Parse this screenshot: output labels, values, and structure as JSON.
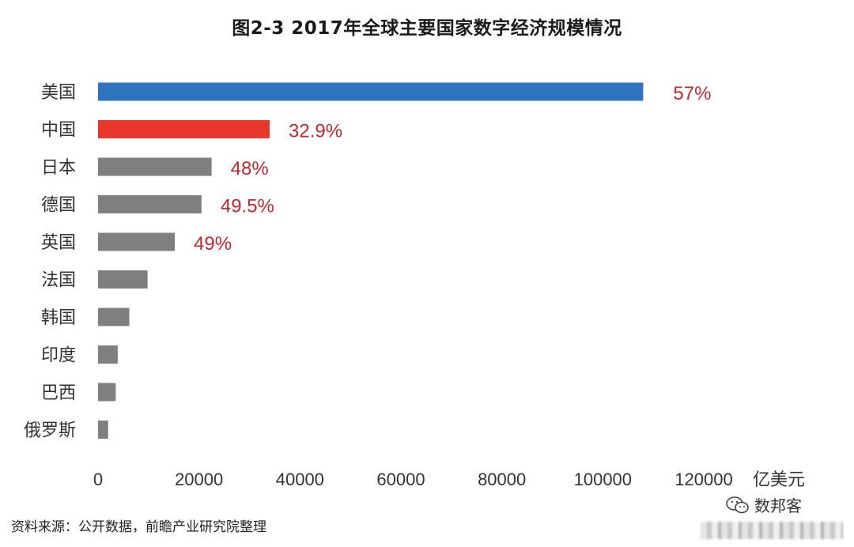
{
  "title": "图2-3 2017年全球主要国家数字经济规模情况",
  "source_text": "资料来源：公开数据，前瞻产业研究院整理",
  "wechat_label": "数邦客",
  "colors": {
    "usa": "#2f74c0",
    "china": "#e8362c",
    "others": "#7f7f7f",
    "share_label": "#c0282d",
    "axis_text": "#333333"
  },
  "chart_data": {
    "type": "bar",
    "orientation": "horizontal",
    "categories": [
      "美国",
      "中国",
      "日本",
      "德国",
      "英国",
      "法国",
      "韩国",
      "印度",
      "巴西",
      "俄罗斯"
    ],
    "values": [
      108000,
      34000,
      22500,
      20500,
      15200,
      9800,
      6200,
      3900,
      3500,
      2000
    ],
    "annotations": [
      "57%",
      "32.9%",
      "48%",
      "49.5%",
      "49%",
      null,
      null,
      null,
      null,
      null
    ],
    "xlim": [
      0,
      120000
    ],
    "xticks": [
      "0",
      "20000",
      "40000",
      "60000",
      "80000",
      "100000",
      "120000"
    ],
    "xunit": "亿美元",
    "title": "图2-3 2017年全球主要国家数字经济规模情况",
    "legend": "none",
    "grid": false
  }
}
